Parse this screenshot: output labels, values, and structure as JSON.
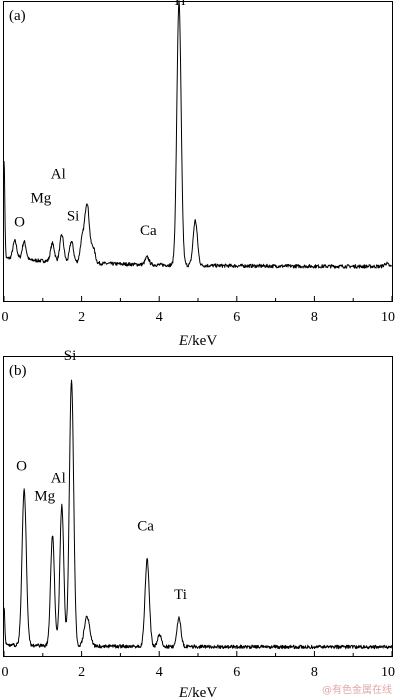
{
  "watermark": "@有色金属在线",
  "chart_data": [
    {
      "type": "line",
      "panel_label": "(a)",
      "xlabel_var": "E",
      "xlabel_unit": "/keV",
      "xlim": [
        0,
        10
      ],
      "x_ticks": [
        0,
        2,
        4,
        6,
        8,
        10
      ],
      "y_ticks_shown": false,
      "ylim": [
        0,
        1
      ],
      "baseline": 0.115,
      "series": [
        {
          "peaks": [
            {
              "x": 0.0,
              "h": 0.33,
              "w": 0.02
            },
            {
              "x": 0.28,
              "h": 0.06,
              "w": 0.05
            },
            {
              "x": 0.52,
              "h": 0.06,
              "w": 0.05
            },
            {
              "x": 1.25,
              "h": 0.06,
              "w": 0.05
            },
            {
              "x": 1.49,
              "h": 0.09,
              "w": 0.05
            },
            {
              "x": 1.74,
              "h": 0.07,
              "w": 0.05
            },
            {
              "x": 2.01,
              "h": 0.07,
              "w": 0.05
            },
            {
              "x": 2.14,
              "h": 0.2,
              "w": 0.06
            },
            {
              "x": 2.3,
              "h": 0.05,
              "w": 0.05
            },
            {
              "x": 3.69,
              "h": 0.025,
              "w": 0.05
            },
            {
              "x": 4.51,
              "h": 0.88,
              "w": 0.055
            },
            {
              "x": 4.93,
              "h": 0.15,
              "w": 0.055
            },
            {
              "x": 9.85,
              "h": 0.01,
              "w": 0.05
            }
          ]
        }
      ],
      "annotations": [
        {
          "text": "Ti",
          "x": 4.51,
          "y": 0.99
        },
        {
          "text": "Al",
          "x": 1.4,
          "y": 0.41
        },
        {
          "text": "Mg",
          "x": 0.95,
          "y": 0.33
        },
        {
          "text": "O",
          "x": 0.4,
          "y": 0.25
        },
        {
          "text": "Si",
          "x": 1.78,
          "y": 0.27
        },
        {
          "text": "Ca",
          "x": 3.72,
          "y": 0.22
        }
      ]
    },
    {
      "type": "line",
      "panel_label": "(b)",
      "xlabel_var": "E",
      "xlabel_unit": "/keV",
      "xlim": [
        0,
        10
      ],
      "x_ticks": [
        0,
        2,
        4,
        6,
        8,
        10
      ],
      "y_ticks_shown": false,
      "ylim": [
        0,
        1
      ],
      "baseline": 0.03,
      "series": [
        {
          "peaks": [
            {
              "x": 0.0,
              "h": 0.13,
              "w": 0.02
            },
            {
              "x": 0.52,
              "h": 0.52,
              "w": 0.055
            },
            {
              "x": 1.25,
              "h": 0.37,
              "w": 0.05
            },
            {
              "x": 1.49,
              "h": 0.47,
              "w": 0.05
            },
            {
              "x": 1.74,
              "h": 0.89,
              "w": 0.055
            },
            {
              "x": 2.14,
              "h": 0.1,
              "w": 0.07
            },
            {
              "x": 3.69,
              "h": 0.29,
              "w": 0.055
            },
            {
              "x": 4.01,
              "h": 0.04,
              "w": 0.05
            },
            {
              "x": 4.51,
              "h": 0.1,
              "w": 0.05
            }
          ]
        }
      ],
      "annotations": [
        {
          "text": "Si",
          "x": 1.7,
          "y": 0.99
        },
        {
          "text": "O",
          "x": 0.45,
          "y": 0.62
        },
        {
          "text": "Al",
          "x": 1.4,
          "y": 0.58
        },
        {
          "text": "Mg",
          "x": 1.05,
          "y": 0.52
        },
        {
          "text": "Ca",
          "x": 3.65,
          "y": 0.42
        },
        {
          "text": "Ti",
          "x": 4.55,
          "y": 0.19
        }
      ]
    }
  ]
}
